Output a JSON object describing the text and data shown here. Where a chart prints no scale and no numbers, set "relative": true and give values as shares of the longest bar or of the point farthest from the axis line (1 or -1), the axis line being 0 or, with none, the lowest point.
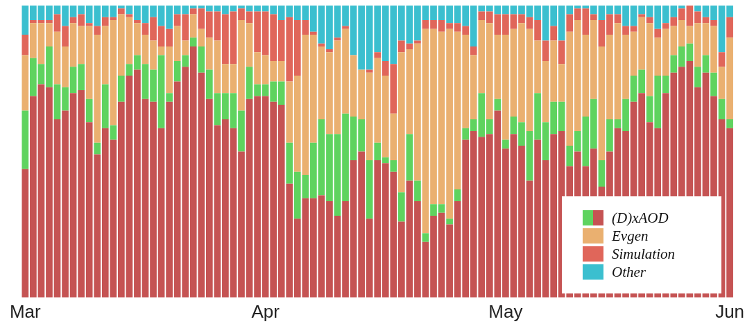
{
  "chart_data": {
    "type": "bar",
    "stacked": true,
    "relative": true,
    "grid": false,
    "legend": "bottom right",
    "categories": [
      "Mar",
      null,
      null,
      null,
      null,
      null,
      null,
      null,
      null,
      null,
      null,
      null,
      null,
      null,
      null,
      null,
      null,
      null,
      null,
      null,
      null,
      null,
      null,
      null,
      null,
      null,
      null,
      null,
      null,
      null,
      "Apr",
      null,
      null,
      null,
      null,
      null,
      null,
      null,
      null,
      null,
      null,
      null,
      null,
      null,
      null,
      null,
      null,
      null,
      null,
      null,
      null,
      null,
      null,
      null,
      null,
      null,
      null,
      null,
      null,
      null,
      "May",
      null,
      null,
      null,
      null,
      null,
      null,
      null,
      null,
      null,
      null,
      null,
      null,
      null,
      null,
      null,
      null,
      null,
      null,
      null,
      null,
      null,
      null,
      null,
      null,
      null,
      null,
      null,
      "Jun"
    ],
    "series": [
      {
        "color": "#c55353",
        "values": [
          0.44,
          0.69,
          0.73,
          0.72,
          0.61,
          0.64,
          0.7,
          0.71,
          0.6,
          0.49,
          0.58,
          0.54,
          0.67,
          0.76,
          0.78,
          0.68,
          0.67,
          0.58,
          0.67,
          0.74,
          0.79,
          0.86,
          0.77,
          0.68,
          0.59,
          0.61,
          0.58,
          0.5,
          0.68,
          0.69,
          0.69,
          0.67,
          0.66,
          0.39,
          0.27,
          0.34,
          0.34,
          0.35,
          0.33,
          0.28,
          0.33,
          0.47,
          0.5,
          0.27,
          0.47,
          0.46,
          0.43,
          0.26,
          0.4,
          0.33,
          0.19,
          0.28,
          0.29,
          0.25,
          0.33,
          0.54,
          0.57,
          0.55,
          0.56,
          0.64,
          0.51,
          0.56,
          0.52,
          0.4,
          0.54,
          0.47,
          0.56,
          0.57,
          0.45,
          0.5,
          0.45,
          0.51,
          0.38,
          0.5,
          0.58,
          0.57,
          0.67,
          0.7,
          0.6,
          0.58,
          0.7,
          0.77,
          0.79,
          0.81,
          0.72,
          0.77,
          0.69,
          0.61,
          0.58
        ]
      },
      {
        "name": "(D)xAOD",
        "color": "#5fd35f",
        "values": [
          0.2,
          0.13,
          0.07,
          0.14,
          0.12,
          0.08,
          0.09,
          0.09,
          0.08,
          0.04,
          0.15,
          0.05,
          0.09,
          0.04,
          0.05,
          0.12,
          0.11,
          0.25,
          0.03,
          0.07,
          0.04,
          0.03,
          0.09,
          0.1,
          0.11,
          0.09,
          0.12,
          0.14,
          0.11,
          0.04,
          0.04,
          0.07,
          0.08,
          0.14,
          0.16,
          0.08,
          0.19,
          0.26,
          0.23,
          0.28,
          0.3,
          0.15,
          0.11,
          0.2,
          0.06,
          0.02,
          0.04,
          0.1,
          0.16,
          0.07,
          0.03,
          0.04,
          0.03,
          0.02,
          0.04,
          0.04,
          0.04,
          0.15,
          0.05,
          0.04,
          0.03,
          0.06,
          0.08,
          0.17,
          0.16,
          0.13,
          0.11,
          0.1,
          0.07,
          0.07,
          0.17,
          0.17,
          0.09,
          0.11,
          0.03,
          0.11,
          0.09,
          0.08,
          0.09,
          0.18,
          0.06,
          0.06,
          0.07,
          0.06,
          0.07,
          0.06,
          0.08,
          0.07,
          0.03
        ]
      },
      {
        "name": "Evgen",
        "color": "#eab070",
        "values": [
          0.19,
          0.12,
          0.14,
          0.08,
          0.18,
          0.14,
          0.15,
          0.13,
          0.25,
          0.37,
          0.2,
          0.36,
          0.21,
          0.16,
          0.11,
          0.1,
          0.1,
          0.03,
          0.16,
          0.12,
          0.05,
          0.08,
          0.06,
          0.11,
          0.18,
          0.1,
          0.1,
          0.31,
          0.15,
          0.11,
          0.1,
          0.07,
          0.07,
          0.21,
          0.33,
          0.48,
          0.37,
          0.25,
          0.28,
          0.32,
          0.29,
          0.21,
          0.17,
          0.3,
          0.29,
          0.28,
          0.16,
          0.48,
          0.29,
          0.47,
          0.7,
          0.6,
          0.59,
          0.65,
          0.54,
          0.32,
          0.22,
          0.25,
          0.33,
          0.22,
          0.36,
          0.3,
          0.34,
          0.35,
          0.18,
          0.21,
          0.21,
          0.13,
          0.39,
          0.38,
          0.28,
          0.27,
          0.39,
          0.29,
          0.33,
          0.22,
          0.15,
          0.18,
          0.25,
          0.13,
          0.16,
          0.1,
          0.09,
          0.06,
          0.15,
          0.11,
          0.16,
          0.11,
          0.28
        ]
      },
      {
        "name": "Simulation",
        "color": "#e0665a",
        "values": [
          0.07,
          0.01,
          0.01,
          0.01,
          0.06,
          0.07,
          0.02,
          0.04,
          0.01,
          0.03,
          0.03,
          0.01,
          0.02,
          0.01,
          0.01,
          0.04,
          0.08,
          0.07,
          0.06,
          0.04,
          0.09,
          0.02,
          0.07,
          0.09,
          0.1,
          0.17,
          0.18,
          0.04,
          0.04,
          0.14,
          0.15,
          0.16,
          0.14,
          0.22,
          0.19,
          0.05,
          0.01,
          0.01,
          0.01,
          0.01,
          0.01,
          0,
          0,
          0.01,
          0.02,
          0.05,
          0.17,
          0.04,
          0.02,
          0.01,
          0.03,
          0.03,
          0.04,
          0.02,
          0.03,
          0.03,
          0.03,
          0.03,
          0.04,
          0.07,
          0.07,
          0.05,
          0.03,
          0.04,
          0.07,
          0.07,
          0.05,
          0.08,
          0.06,
          0.04,
          0.09,
          0.02,
          0.09,
          0.07,
          0.03,
          0.03,
          0.02,
          0.01,
          0.02,
          0.03,
          0.02,
          0.03,
          0.04,
          0.07,
          0.04,
          0.02,
          0.02,
          0.05,
          0.07
        ]
      },
      {
        "name": "Other",
        "color": "#3bbfcf",
        "values": [
          0.1,
          0.05,
          0.05,
          0.05,
          0.03,
          0.07,
          0.04,
          0.03,
          0.06,
          0.07,
          0.04,
          0.04,
          0.01,
          0.03,
          0.05,
          0.06,
          0.04,
          0.07,
          0.08,
          0.03,
          0.03,
          0.01,
          0.01,
          0.02,
          0.02,
          0.03,
          0.02,
          0.01,
          0.02,
          0.02,
          0.02,
          0.03,
          0.05,
          0.04,
          0.05,
          0.05,
          0.09,
          0.13,
          0.15,
          0.11,
          0.07,
          0.17,
          0.22,
          0.22,
          0.16,
          0.19,
          0.2,
          0.12,
          0.13,
          0.12,
          0.05,
          0.05,
          0.05,
          0.06,
          0.06,
          0.07,
          0.14,
          0.02,
          0.02,
          0.03,
          0.03,
          0.03,
          0.03,
          0.04,
          0.05,
          0.12,
          0.07,
          0.12,
          0.03,
          0.01,
          0.01,
          0.03,
          0.05,
          0.03,
          0.03,
          0.07,
          0.07,
          0.03,
          0.04,
          0.08,
          0.06,
          0.04,
          0.01,
          0,
          0.02,
          0.04,
          0.05,
          0.16,
          0.04
        ]
      }
    ]
  }
}
